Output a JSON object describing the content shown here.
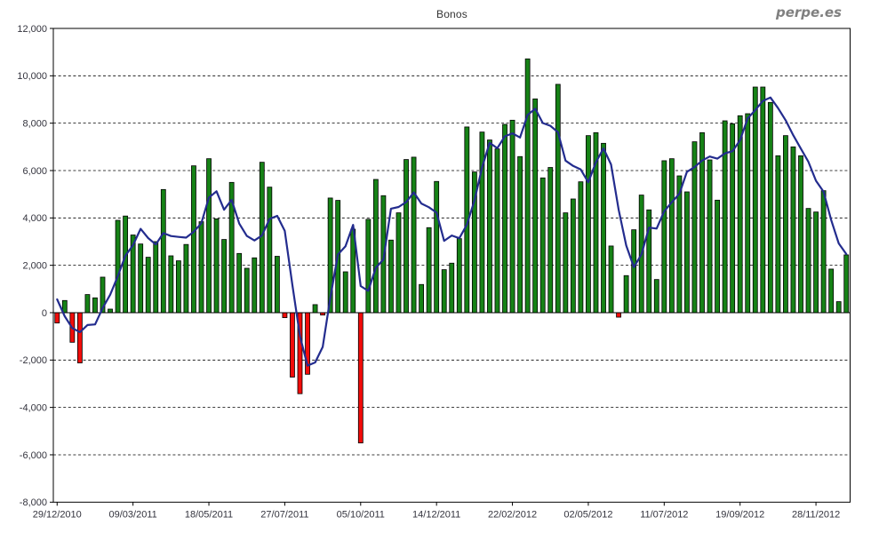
{
  "chart_data": {
    "type": "bar",
    "title": "Bonos",
    "watermark": "perpe.es",
    "grid": "horizontal-dashed",
    "legend": "none",
    "ylim": [
      -8000,
      12000
    ],
    "y_tick_interval": 2000,
    "y_tick_labels": [
      "12,000",
      "10,000",
      "8,000",
      "6,000",
      "4,000",
      "2,000",
      "0",
      "-2,000",
      "-4,000",
      "-6,000",
      "-8,000"
    ],
    "x_tick_labels": [
      "29/12/2010",
      "09/03/2011",
      "18/05/2011",
      "27/07/2011",
      "05/10/2011",
      "14/12/2011",
      "22/02/2012",
      "02/05/2012",
      "11/07/2012",
      "19/09/2012",
      "28/11/2012"
    ],
    "x_tick_bar_indices": [
      0,
      10,
      20,
      30,
      40,
      50,
      60,
      70,
      80,
      90,
      100
    ],
    "x_frequency": "weekly",
    "bar_values": [
      -435,
      514,
      -1250,
      -2120,
      765,
      626,
      1500,
      150,
      3900,
      4080,
      3280,
      2900,
      2340,
      3000,
      5200,
      2400,
      2190,
      2880,
      6200,
      3840,
      6500,
      3960,
      3090,
      5500,
      2500,
      1875,
      2315,
      6350,
      5300,
      2380,
      -210,
      -2720,
      -3420,
      -2600,
      340,
      -100,
      4840,
      4740,
      1725,
      3525,
      -5500,
      3940,
      5625,
      4940,
      3065,
      4215,
      6465,
      6565,
      1190,
      3590,
      5540,
      1815,
      2090,
      3125,
      7840,
      5940,
      7625,
      7290,
      6915,
      7950,
      8125,
      6590,
      10715,
      9025,
      5690,
      6130,
      9640,
      4215,
      4800,
      5525,
      7475,
      7600,
      7150,
      2815,
      -190,
      1565,
      3500,
      4965,
      4340,
      1400,
      6415,
      6500,
      5775,
      5100,
      7215,
      7600,
      6450,
      4750,
      8100,
      7975,
      8315,
      8400,
      9525,
      9525,
      8875,
      6625,
      7475,
      7000,
      6625,
      4400,
      4250,
      5150,
      1840,
      465,
      2440
    ],
    "line_series": {
      "name": "4-week moving average",
      "rule": "ma4",
      "start_values": [
        560,
        -150,
        -650
      ]
    },
    "colors": {
      "bar_positive": "#168216",
      "bar_negative": "#f20c0a",
      "bar_border": "#000000",
      "line": "#232c8e",
      "grid": "#000000",
      "frame": "#000000",
      "text": "#33333d",
      "watermark": "#808080",
      "background": "#ffffff"
    }
  }
}
